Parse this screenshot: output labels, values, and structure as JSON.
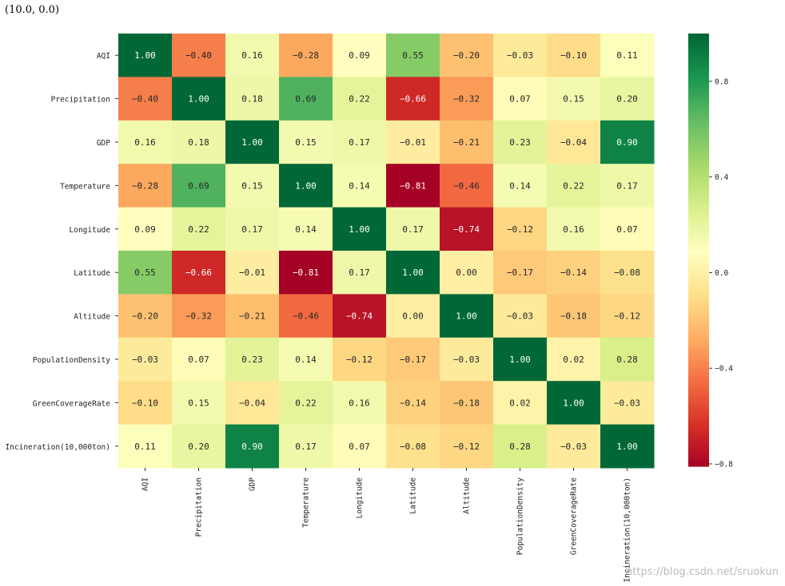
{
  "output_text": "(10.0, 0.0)",
  "watermark": "https://blog.csdn.net/sruokun",
  "chart_data": {
    "type": "heatmap",
    "title": "",
    "colormap": "RdYlGn",
    "vmin": -0.81,
    "vmax": 1.0,
    "row_labels": [
      "AQI",
      "Precipitation",
      "GDP",
      "Temperature",
      "Longitude",
      "Latitude",
      "Altitude",
      "PopulationDensity",
      "GreenCoverageRate",
      "Incineration(10,000ton)"
    ],
    "col_labels": [
      "AQI",
      "Precipitation",
      "GDP",
      "Temperature",
      "Longitude",
      "Latitude",
      "Altitude",
      "PopulationDensity",
      "GreenCoverageRate",
      "Incineration(10,000ton)"
    ],
    "values": [
      [
        1.0,
        -0.4,
        0.16,
        -0.28,
        0.09,
        0.55,
        -0.2,
        -0.03,
        -0.1,
        0.11
      ],
      [
        -0.4,
        1.0,
        0.18,
        0.69,
        0.22,
        -0.66,
        -0.32,
        0.07,
        0.15,
        0.2
      ],
      [
        0.16,
        0.18,
        1.0,
        0.15,
        0.17,
        -0.01,
        -0.21,
        0.23,
        -0.04,
        0.9
      ],
      [
        -0.28,
        0.69,
        0.15,
        1.0,
        0.14,
        -0.81,
        -0.46,
        0.14,
        0.22,
        0.17
      ],
      [
        0.09,
        0.22,
        0.17,
        0.14,
        1.0,
        0.17,
        -0.74,
        -0.12,
        0.16,
        0.07
      ],
      [
        0.55,
        -0.66,
        -0.01,
        -0.81,
        0.17,
        1.0,
        0.0,
        -0.17,
        -0.14,
        -0.08
      ],
      [
        -0.2,
        -0.32,
        -0.21,
        -0.46,
        -0.74,
        0.0,
        1.0,
        -0.03,
        -0.18,
        -0.12
      ],
      [
        -0.03,
        0.07,
        0.23,
        0.14,
        -0.12,
        -0.17,
        -0.03,
        1.0,
        0.02,
        0.28
      ],
      [
        -0.1,
        0.15,
        -0.04,
        0.22,
        0.16,
        -0.14,
        -0.18,
        0.02,
        1.0,
        -0.03
      ],
      [
        0.11,
        0.2,
        0.9,
        0.17,
        0.07,
        -0.08,
        -0.12,
        0.28,
        -0.03,
        1.0
      ]
    ],
    "colorbar_ticks": [
      0.8,
      0.4,
      0.0,
      -0.4,
      -0.8
    ],
    "colorbar_tick_labels": [
      "0.8",
      "0.4",
      "0.0",
      "−0.4",
      "−0.8"
    ]
  }
}
